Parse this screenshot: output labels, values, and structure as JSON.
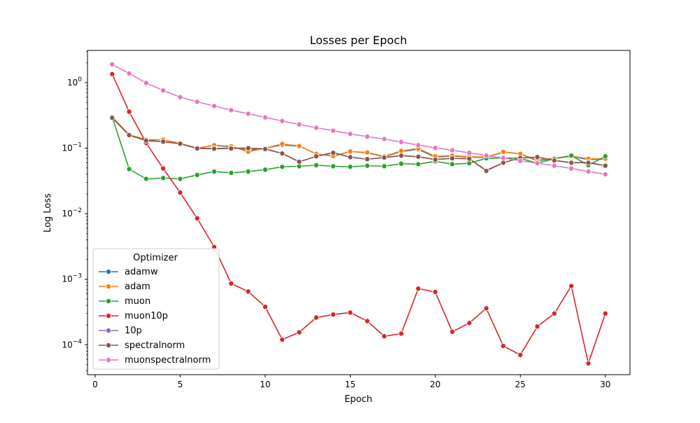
{
  "chart_data": {
    "type": "line",
    "title": "Losses per Epoch",
    "xlabel": "Epoch",
    "ylabel": "Log Loss",
    "yscale": "log",
    "xlim": [
      -0.45,
      31.45
    ],
    "ylim": [
      3.5e-05,
      3.1
    ],
    "xticks": [
      0,
      5,
      10,
      15,
      20,
      25,
      30
    ],
    "yticks": [
      {
        "value": 1,
        "base": "10",
        "exp": "0"
      },
      {
        "value": 0.1,
        "base": "10",
        "exp": "−1"
      },
      {
        "value": 0.01,
        "base": "10",
        "exp": "−2"
      },
      {
        "value": 0.001,
        "base": "10",
        "exp": "−3"
      },
      {
        "value": 0.0001,
        "base": "10",
        "exp": "−4"
      }
    ],
    "grid": false,
    "legend": {
      "title": "Optimizer",
      "placement": "lower-left"
    },
    "x": [
      1,
      2,
      3,
      4,
      5,
      6,
      7,
      8,
      9,
      10,
      11,
      12,
      13,
      14,
      15,
      16,
      17,
      18,
      19,
      20,
      21,
      22,
      23,
      24,
      25,
      26,
      27,
      28,
      29,
      30
    ],
    "series": [
      {
        "name": "adamw",
        "color": "#1f77b4",
        "values": [
          0.3,
          0.16,
          0.135,
          0.125,
          0.118,
          0.1,
          0.11,
          0.105,
          0.092,
          0.1,
          0.112,
          0.107,
          0.082,
          0.075,
          0.089,
          0.085,
          0.074,
          0.089,
          0.096,
          0.073,
          0.076,
          0.073,
          0.072,
          0.087,
          0.082,
          0.064,
          0.07,
          0.075,
          0.067,
          0.068
        ]
      },
      {
        "name": "adam",
        "color": "#ff7f0e",
        "values": [
          0.3,
          0.16,
          0.135,
          0.135,
          0.118,
          0.1,
          0.111,
          0.107,
          0.088,
          0.1,
          0.116,
          0.108,
          0.082,
          0.076,
          0.089,
          0.086,
          0.075,
          0.091,
          0.099,
          0.075,
          0.077,
          0.074,
          0.073,
          0.088,
          0.082,
          0.066,
          0.07,
          0.076,
          0.069,
          0.069
        ]
      },
      {
        "name": "muon",
        "color": "#2ca02c",
        "values": [
          0.3,
          0.048,
          0.034,
          0.035,
          0.034,
          0.039,
          0.044,
          0.042,
          0.044,
          0.047,
          0.052,
          0.053,
          0.055,
          0.053,
          0.052,
          0.054,
          0.053,
          0.058,
          0.057,
          0.063,
          0.057,
          0.059,
          0.07,
          0.071,
          0.07,
          0.059,
          0.069,
          0.077,
          0.055,
          0.075
        ]
      },
      {
        "name": "muon10p",
        "color": "#d62728",
        "values": [
          1.35,
          0.36,
          0.12,
          0.049,
          0.021,
          0.0085,
          0.0031,
          0.00086,
          0.00065,
          0.00038,
          0.00012,
          0.000155,
          0.00026,
          0.00029,
          0.00031,
          0.00023,
          0.000135,
          0.000148,
          0.00072,
          0.00064,
          0.000158,
          0.000215,
          0.00036,
          9.6e-05,
          7e-05,
          0.00019,
          0.0003,
          0.00079,
          5.2e-05,
          0.0003
        ]
      },
      {
        "name": "10p",
        "color": "#9467bd",
        "values": [
          0.29,
          0.158,
          0.13,
          0.126,
          0.117,
          0.099,
          0.099,
          0.1,
          0.1,
          0.098,
          0.083,
          0.062,
          0.075,
          0.086,
          0.073,
          0.068,
          0.072,
          0.077,
          0.074,
          0.067,
          0.07,
          0.069,
          0.046,
          0.06,
          0.071,
          0.073,
          0.065,
          0.06,
          0.061,
          0.054
        ]
      },
      {
        "name": "spectralnorm",
        "color": "#8c564b",
        "values": [
          0.29,
          0.158,
          0.13,
          0.126,
          0.117,
          0.099,
          0.098,
          0.099,
          0.1,
          0.097,
          0.083,
          0.062,
          0.075,
          0.085,
          0.073,
          0.068,
          0.072,
          0.077,
          0.074,
          0.067,
          0.07,
          0.069,
          0.045,
          0.06,
          0.071,
          0.073,
          0.065,
          0.06,
          0.06,
          0.054
        ]
      },
      {
        "name": "muonspectralnorm",
        "color": "#e377c2",
        "values": [
          1.9,
          1.38,
          0.99,
          0.76,
          0.6,
          0.51,
          0.44,
          0.38,
          0.335,
          0.295,
          0.26,
          0.23,
          0.205,
          0.185,
          0.165,
          0.15,
          0.138,
          0.124,
          0.111,
          0.101,
          0.093,
          0.085,
          0.077,
          0.071,
          0.064,
          0.059,
          0.054,
          0.049,
          0.044,
          0.04
        ]
      }
    ]
  }
}
